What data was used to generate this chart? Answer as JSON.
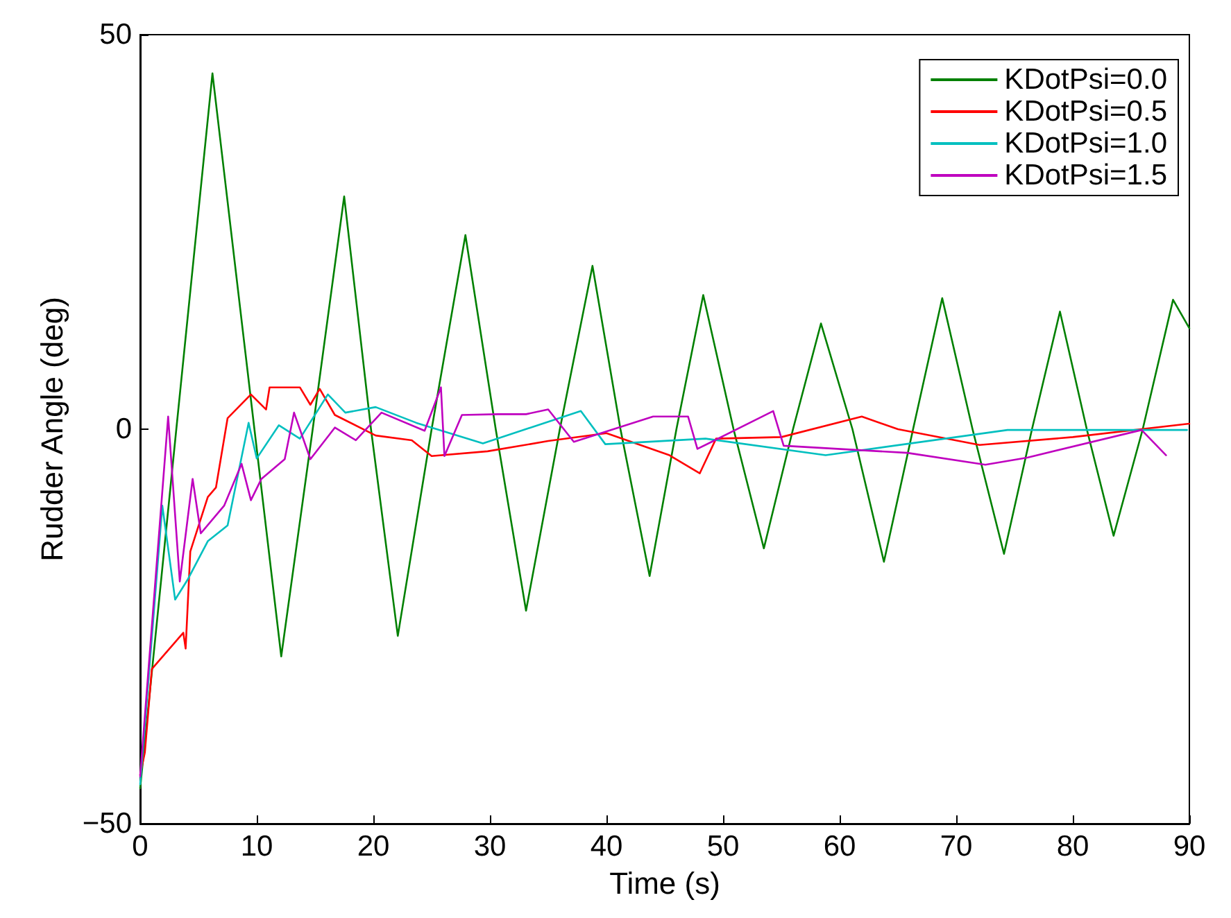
{
  "chart_data": {
    "type": "line",
    "xlabel": "Time (s)",
    "ylabel": "Rudder Angle (deg)",
    "xlim": [
      0,
      90
    ],
    "ylim": [
      -50,
      50
    ],
    "xticks": [
      0,
      10,
      20,
      30,
      40,
      50,
      60,
      70,
      80,
      90
    ],
    "yticks": [
      -50,
      0,
      50
    ],
    "grid": false,
    "legend": "top right",
    "marker": "none",
    "line_style": "solid",
    "series": [
      {
        "name": "KDotPsi=0.0",
        "color": "#008000",
        "x": [
          0,
          3.1,
          6.2,
          9.8,
          12.1,
          14.8,
          17.5,
          19.8,
          22.1,
          25,
          27.9,
          30.5,
          33.1,
          36,
          38.8,
          41.2,
          43.7,
          46,
          48.3,
          50.9,
          53.5,
          56,
          58.4,
          61.1,
          63.8,
          66.3,
          68.8,
          71.4,
          74.1,
          76.5,
          78.9,
          81.2,
          83.5,
          86,
          88.6,
          90
        ],
        "values": [
          -45.5,
          0,
          45.1,
          0,
          -28.8,
          0,
          29.5,
          0,
          -26.2,
          0,
          24.6,
          0,
          -23,
          0,
          20.7,
          0,
          -18.6,
          0,
          17,
          0,
          -15.1,
          0,
          13.4,
          0,
          -16.8,
          0,
          16.6,
          0,
          -15.8,
          0,
          14.9,
          0,
          -13.5,
          0,
          16.4,
          12.8
        ]
      },
      {
        "name": "KDotPsi=0.5",
        "color": "#ff0000",
        "x": [
          0,
          0.4,
          1,
          3.7,
          3.9,
          4.3,
          5.8,
          6.5,
          7.5,
          9.5,
          10.8,
          11.1,
          13.7,
          14.6,
          15.4,
          16.7,
          20.2,
          23.3,
          25,
          29.8,
          35,
          40,
          45.4,
          48,
          49.4,
          55,
          61.9,
          65,
          72,
          80,
          90
        ],
        "values": [
          -43.8,
          -41,
          -30.4,
          -25.8,
          -27.8,
          -15.5,
          -8.6,
          -7.4,
          1.4,
          4.4,
          2.5,
          5.3,
          5.3,
          3.1,
          5.1,
          1.8,
          -0.8,
          -1.4,
          -3.4,
          -2.8,
          -1.5,
          -0.5,
          -3.3,
          -5.6,
          -1.2,
          -1,
          1.6,
          0,
          -2,
          -1,
          0.7
        ]
      },
      {
        "name": "KDotPsi=1.0",
        "color": "#00bfbf",
        "x": [
          0,
          1.9,
          3,
          4.1,
          5.8,
          7.5,
          9.3,
          10,
          11.9,
          13.7,
          16.1,
          17.6,
          20.2,
          23.7,
          29.4,
          37.8,
          39.9,
          48.5,
          58.8,
          74.4,
          89.8
        ],
        "values": [
          -45,
          -9.7,
          -21.6,
          -19,
          -14.2,
          -12.2,
          0.8,
          -3.7,
          0.5,
          -1.2,
          4.4,
          2.1,
          2.8,
          0.8,
          -1.8,
          2.3,
          -1.9,
          -1.2,
          -3.3,
          -0.1,
          -0.1
        ]
      },
      {
        "name": "KDotPsi=1.5",
        "color": "#bf00bf",
        "x": [
          0,
          2.4,
          3.4,
          4.5,
          5.2,
          7.2,
          8.7,
          9.5,
          10.4,
          12.4,
          13.2,
          14.6,
          16.7,
          18.5,
          20.7,
          24.4,
          25.8,
          26.1,
          27.6,
          30.7,
          33.1,
          35,
          37.2,
          44,
          47,
          47.8,
          54.3,
          55.2,
          65.8,
          72.5,
          76.1,
          85.9,
          88
        ],
        "values": [
          -44,
          1.6,
          -19.3,
          -6.3,
          -13.2,
          -9.7,
          -4.4,
          -9,
          -6.3,
          -3.8,
          2.1,
          -3.8,
          0.2,
          -1.4,
          2.1,
          -0.2,
          5.3,
          -3.4,
          1.8,
          1.9,
          1.9,
          2.5,
          -1.6,
          1.6,
          1.6,
          -2.5,
          2.3,
          -2.1,
          -3,
          -4.5,
          -3.6,
          -0.1,
          -3.3
        ]
      }
    ]
  }
}
